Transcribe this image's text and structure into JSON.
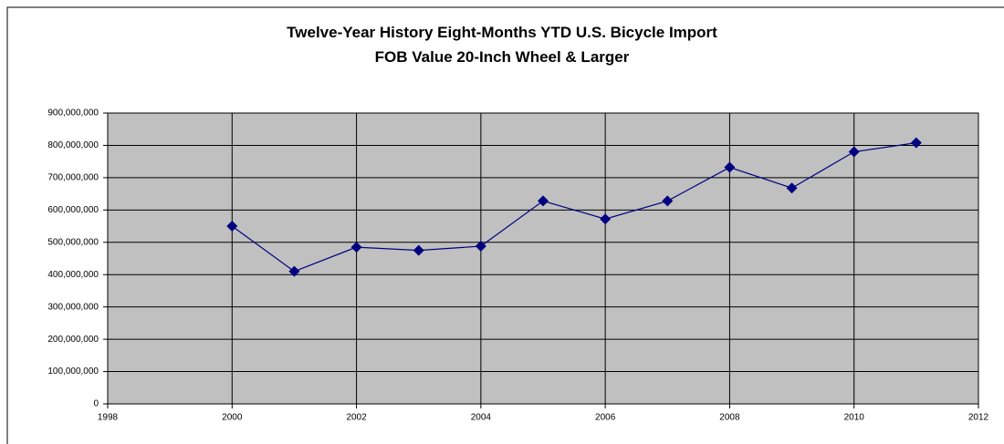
{
  "chart_data": {
    "type": "line",
    "title": "Twelve-Year History Eight-Months YTD U.S. Bicycle Import FOB Value 20-Inch Wheel & Larger",
    "x": [
      2000,
      2001,
      2002,
      2003,
      2004,
      2005,
      2006,
      2007,
      2008,
      2009,
      2010,
      2011
    ],
    "series": [
      {
        "name": "Value",
        "color": "#000080",
        "values": [
          550000000,
          410000000,
          485000000,
          475000000,
          488000000,
          628000000,
          572000000,
          628000000,
          732000000,
          668000000,
          780000000,
          808000000
        ]
      }
    ],
    "xlim": [
      1998,
      2012
    ],
    "xticks": [
      1998,
      2000,
      2002,
      2004,
      2006,
      2008,
      2010,
      2012
    ],
    "ylim": [
      0,
      900000000
    ],
    "yticks": [
      0,
      {
        "value": 100000000,
        "label": "100,000,000"
      },
      {
        "value": 200000000,
        "label": "200,000,000"
      },
      {
        "value": 300000000,
        "label": "300,000,000"
      },
      {
        "value": 400000000,
        "label": "400,000,000"
      },
      {
        "value": 500000000,
        "label": "500,000,000"
      },
      {
        "value": 600000000,
        "label": "600,000,000"
      },
      {
        "value": 700000000,
        "label": "700,000,000"
      },
      {
        "value": 800000000,
        "label": "800,000,000"
      },
      {
        "value": 900000000,
        "label": "900,000,000"
      }
    ],
    "grid": true,
    "plot_background": "#c0c0c0"
  }
}
